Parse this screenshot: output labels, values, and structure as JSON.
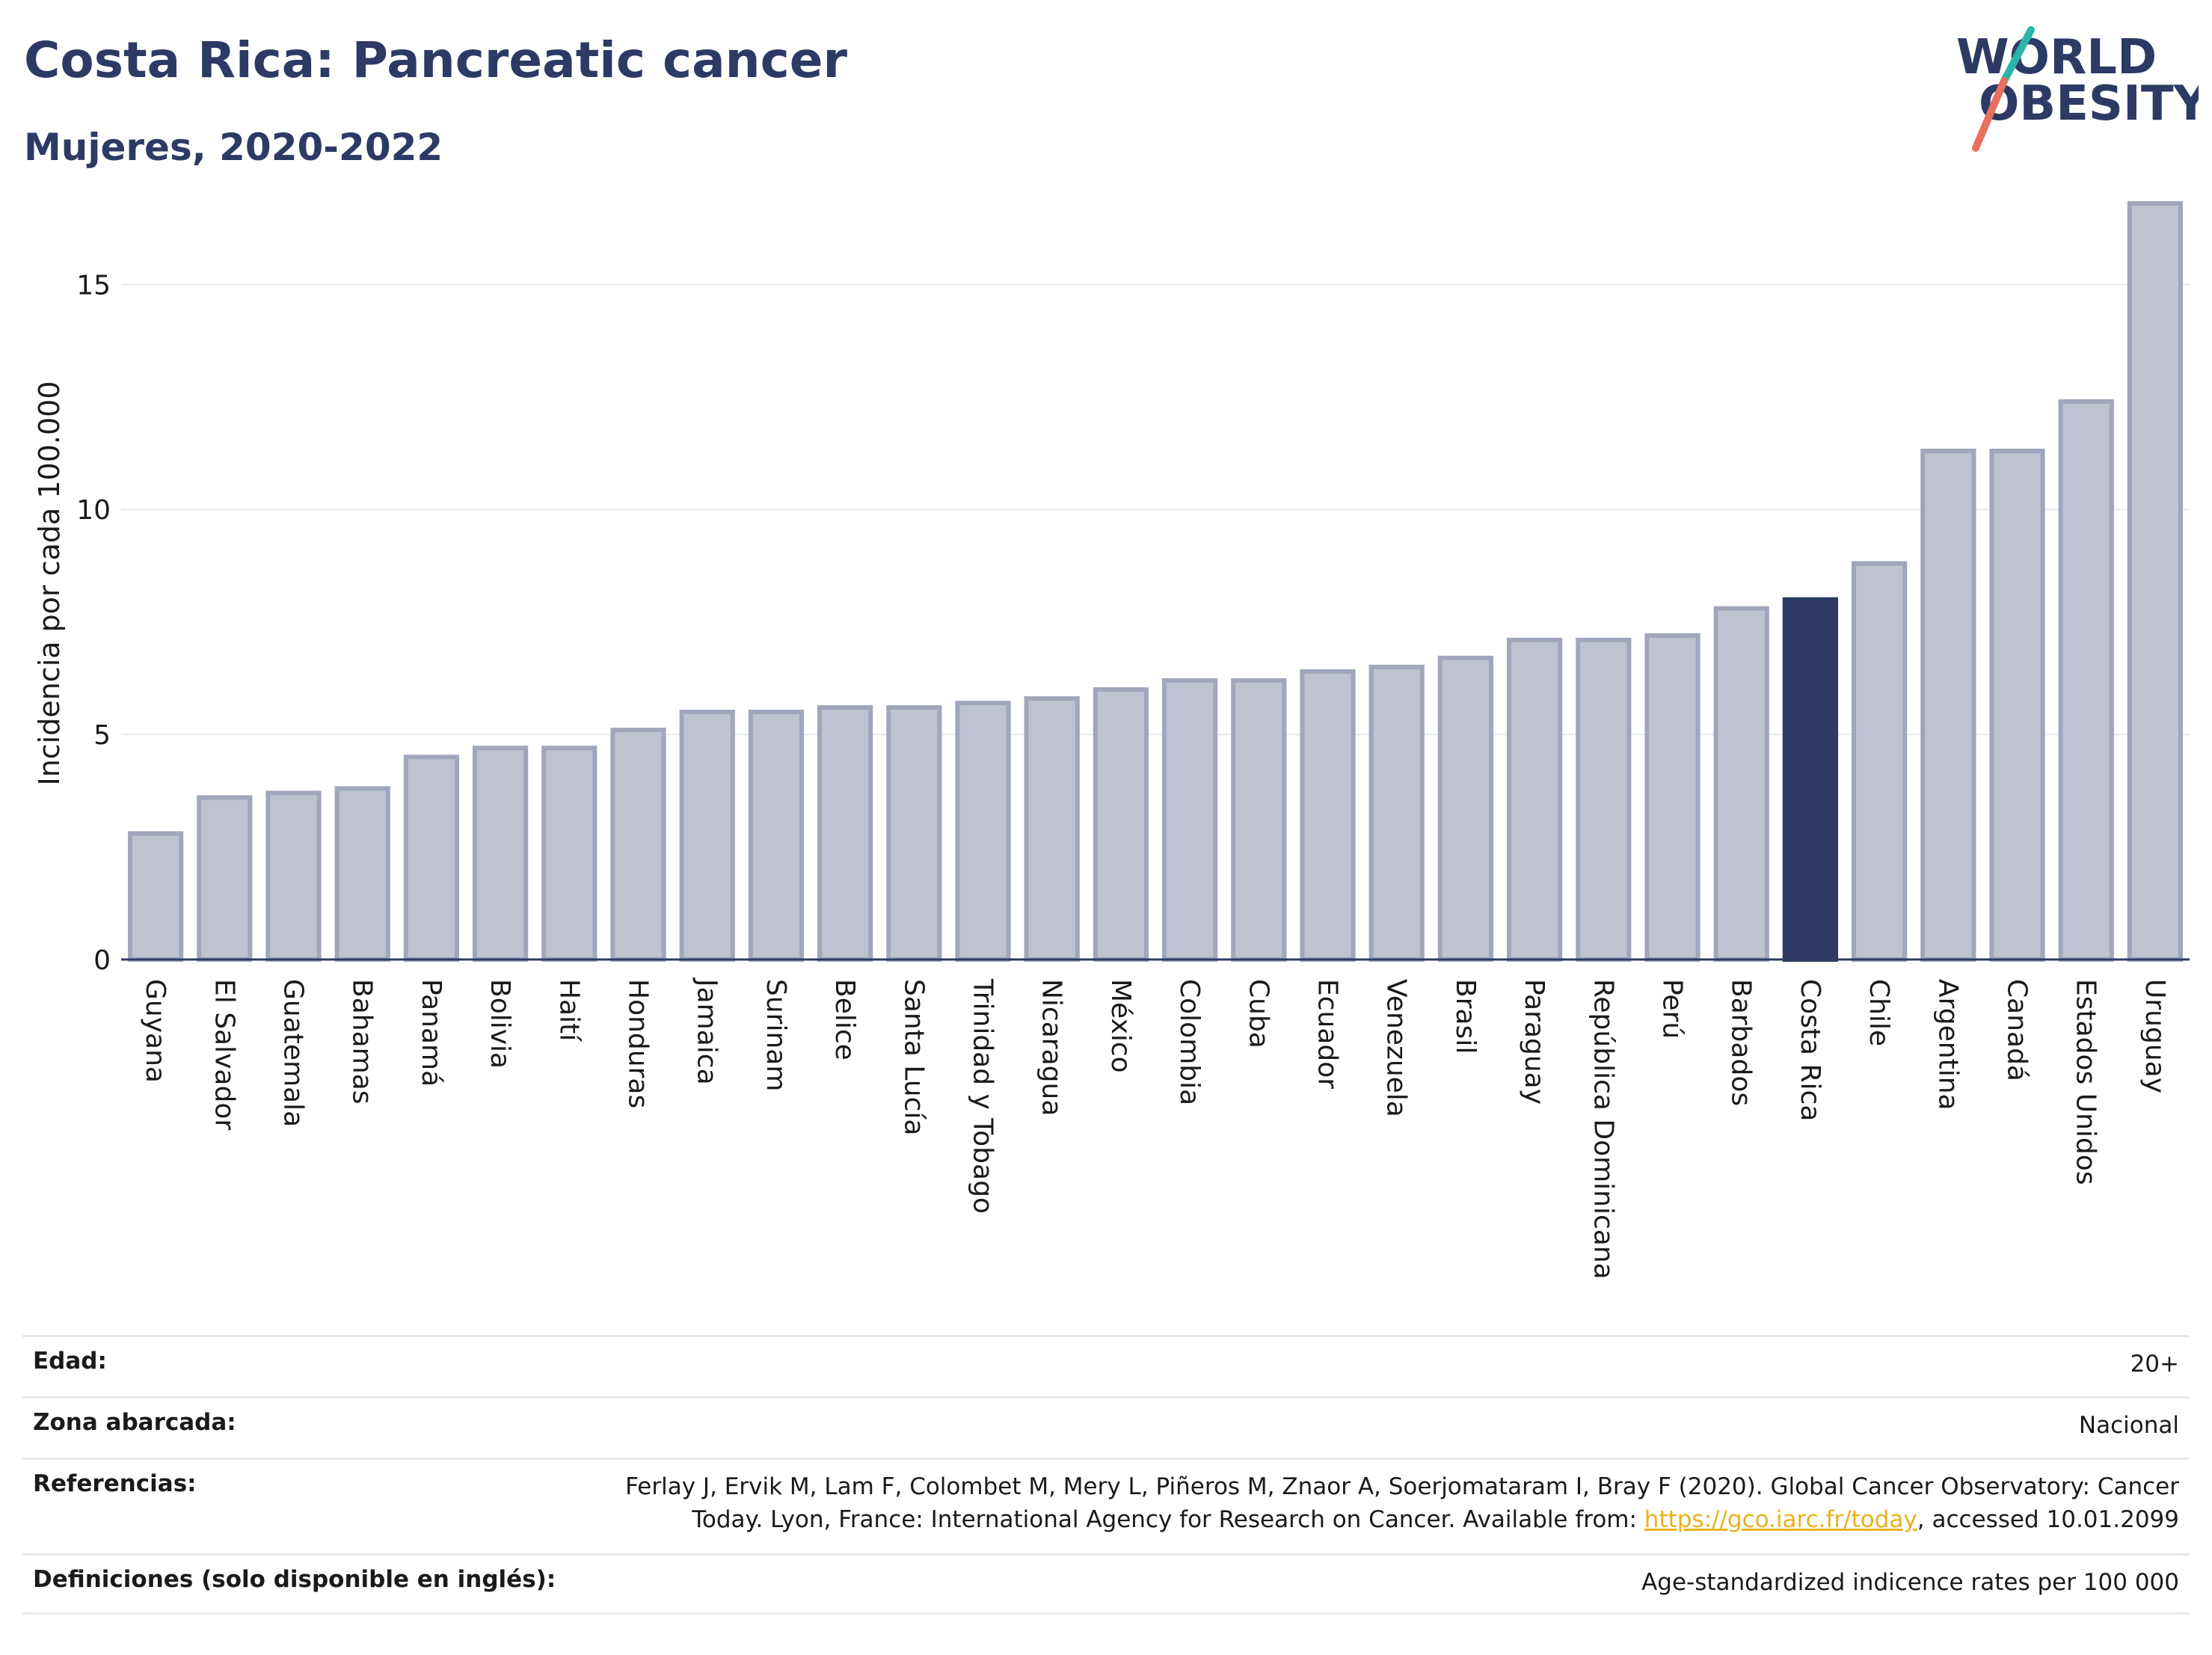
{
  "header": {
    "title": "Costa Rica: Pancreatic cancer",
    "subtitle": "Mujeres, 2020-2022"
  },
  "logo": {
    "line1": "WORLD",
    "line2": "OBESITY",
    "colors": {
      "text": "#2c3a64",
      "slash_top": "#2bb5a8",
      "slash_bottom": "#e8705f"
    }
  },
  "chart_data": {
    "type": "bar",
    "ylabel": "Incidencia por cada 100.000",
    "ylim": [
      0,
      17
    ],
    "yticks": [
      0,
      5,
      10,
      15
    ],
    "grid": true,
    "highlight": "Costa Rica",
    "colors": {
      "bar": "#bfc3d1",
      "bar_border": "#a0a6bb",
      "highlight": "#2c3a64",
      "grid": "#e6e8ef",
      "axis": "#2c3a64"
    },
    "categories": [
      "Guyana",
      "El Salvador",
      "Guatemala",
      "Bahamas",
      "Panamá",
      "Bolivia",
      "Haití",
      "Honduras",
      "Jamaica",
      "Surinam",
      "Belice",
      "Santa Lucía",
      "Trinidad y Tobago",
      "Nicaragua",
      "México",
      "Colombia",
      "Cuba",
      "Ecuador",
      "Venezuela",
      "Brasil",
      "Paraguay",
      "República Dominicana",
      "Perú",
      "Barbados",
      "Costa Rica",
      "Chile",
      "Argentina",
      "Canadá",
      "Estados Unidos",
      "Uruguay"
    ],
    "values": [
      2.8,
      3.6,
      3.7,
      3.8,
      4.5,
      4.7,
      4.7,
      5.1,
      5.5,
      5.5,
      5.6,
      5.6,
      5.7,
      5.8,
      6.0,
      6.2,
      6.2,
      6.4,
      6.5,
      6.7,
      7.1,
      7.1,
      7.2,
      7.8,
      8.0,
      8.8,
      11.3,
      11.3,
      12.4,
      16.8
    ]
  },
  "info": {
    "edad_label": "Edad:",
    "edad_value": "20+",
    "zona_label": "Zona abarcada:",
    "zona_value": "Nacional",
    "ref_label": "Referencias:",
    "ref_text_1": "Ferlay J, Ervik M, Lam F, Colombet M, Mery L, Piñeros M, Znaor A, Soerjomataram I, Bray F (2020). Global Cancer Observatory: Cancer",
    "ref_text_2": "Today. Lyon, France: International Agency for Research on Cancer. Available from: ",
    "ref_link": "https://gco.iarc.fr/today",
    "ref_text_3": ", accessed 10.01.2099",
    "def_label": "Definiciones (solo disponible en inglés):",
    "def_value": "Age-standardized indicence rates per 100 000"
  }
}
